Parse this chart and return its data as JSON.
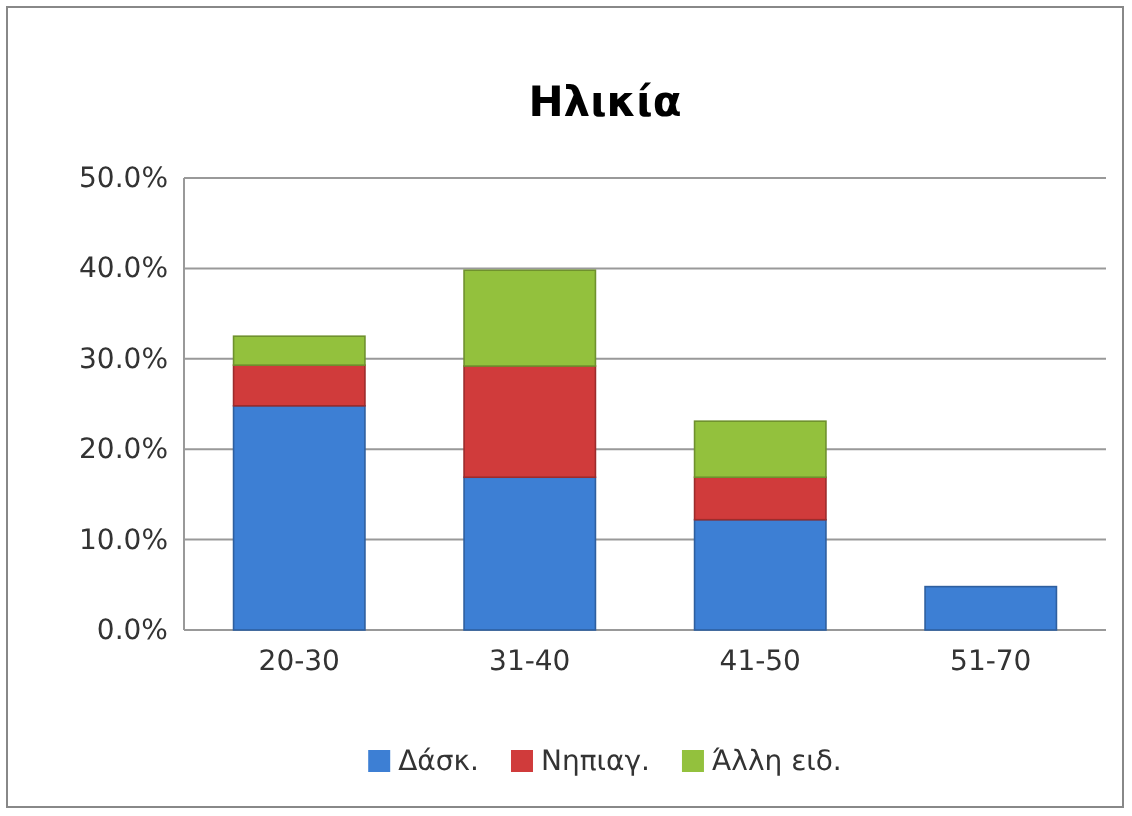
{
  "chart_data": {
    "type": "bar",
    "title": "Ηλικία",
    "stacked": true,
    "categories": [
      "20-30",
      "31-40",
      "41-50",
      "51-70"
    ],
    "series": [
      {
        "name": "Δάσκ.",
        "color": "#3d7fd4",
        "values": [
          24.8,
          16.9,
          12.2,
          4.8
        ]
      },
      {
        "name": "Νηπιαγ.",
        "color": "#d03b3b",
        "values": [
          4.5,
          12.3,
          4.7,
          0
        ]
      },
      {
        "name": "Άλλη ειδ.",
        "color": "#93c13d",
        "values": [
          3.2,
          10.6,
          6.2,
          0
        ]
      }
    ],
    "ylim": [
      0,
      50
    ],
    "yticks": [
      {
        "value": 0,
        "label": "0.0%"
      },
      {
        "value": 10,
        "label": "10.0%"
      },
      {
        "value": 20,
        "label": "20.0%"
      },
      {
        "value": 30,
        "label": "30.0%"
      },
      {
        "value": 40,
        "label": "40.0%"
      },
      {
        "value": 50,
        "label": "50.0%"
      }
    ],
    "grid": "y",
    "legend": "bottom"
  }
}
